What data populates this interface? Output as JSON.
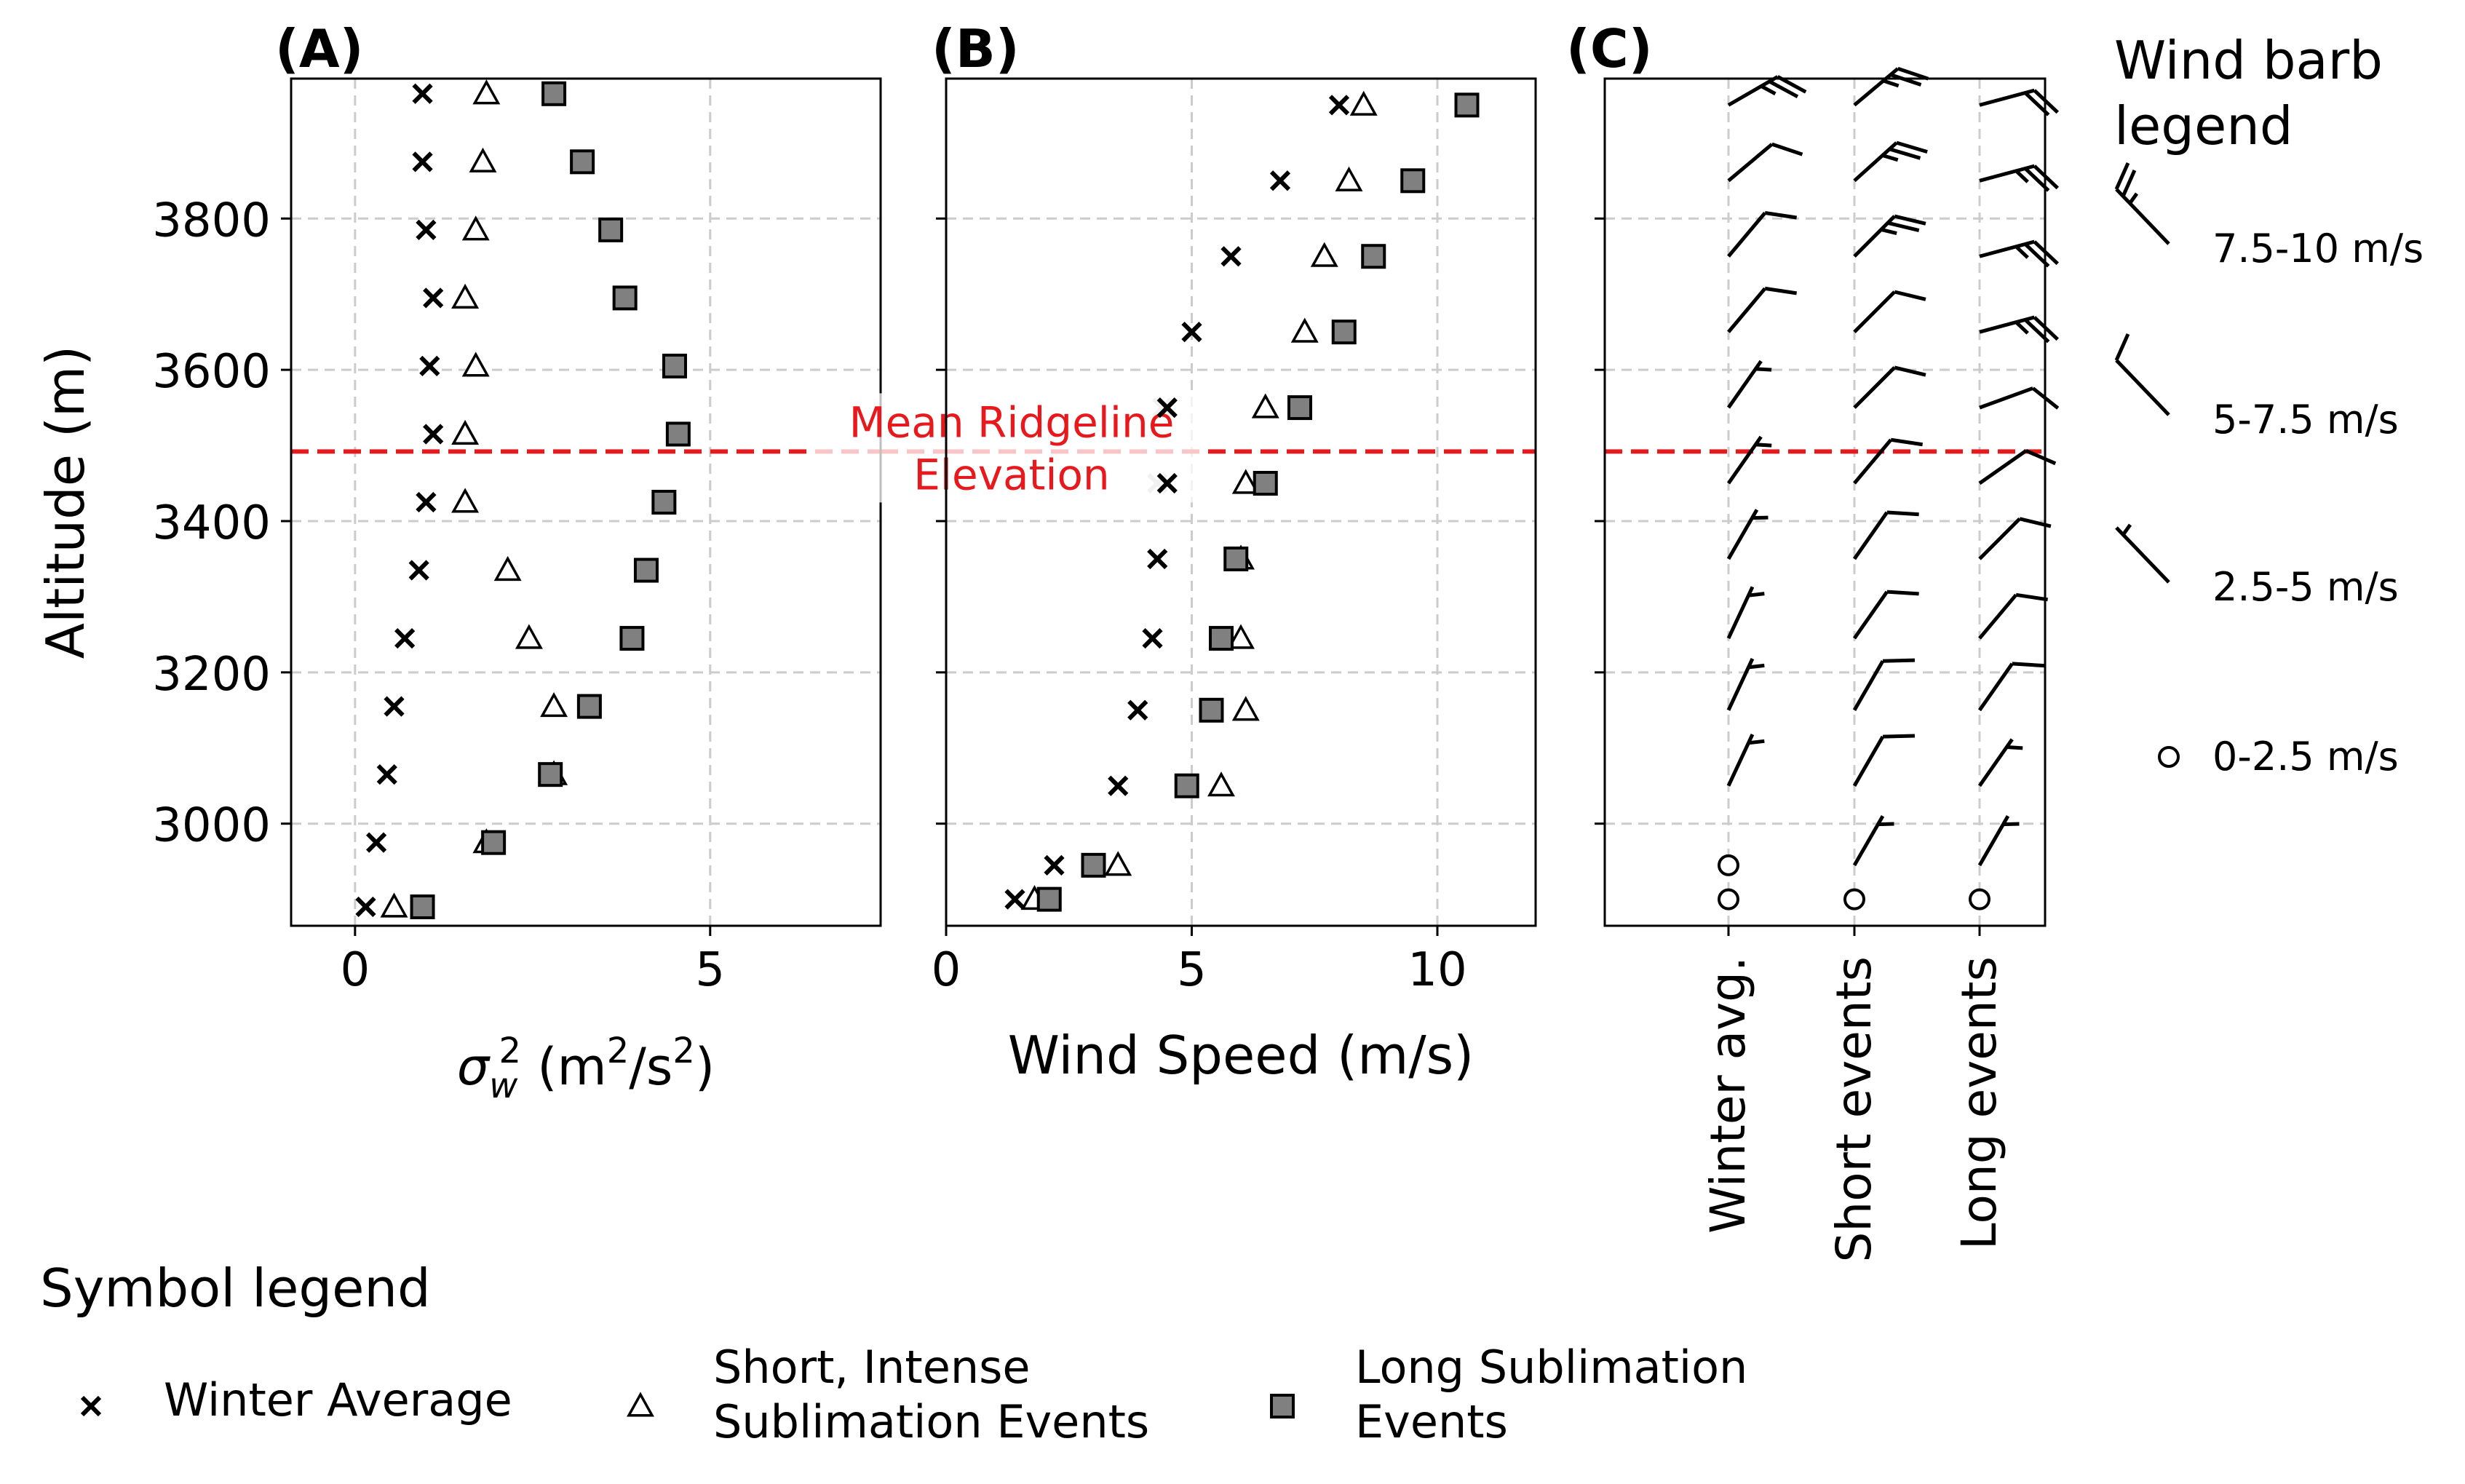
{
  "colors": {
    "winter": "#000000",
    "short_stroke": "#000000",
    "long_fill": "#808080",
    "ridge": "#e8191c",
    "grid": "#cccccc",
    "faded_winter": "#c8c8c8"
  },
  "chart_data": [
    {
      "panel": "A",
      "type": "scatter",
      "panel_label": "(A)",
      "xlabel_symbol": "σ",
      "xlabel_sub": "w",
      "xlabel_sup": "2",
      "xlabel_units_pre": " (m",
      "xlabel_units_sup": "2",
      "xlabel_units_mid": "/s",
      "xlabel_units_sup2": "2",
      "xlabel_units_post": ")",
      "ylabel": "Altitude (m)",
      "xlim": [
        -0.9,
        7.4
      ],
      "ylim": [
        2865,
        3985
      ],
      "xticks": [
        0,
        5
      ],
      "xticklabels": [
        "0",
        "5"
      ],
      "yticks": [
        3000,
        3200,
        3400,
        3600,
        3800
      ],
      "yticklabels": [
        "3000",
        "3200",
        "3400",
        "3600",
        "3800"
      ],
      "grid": true,
      "series": [
        {
          "name": "Winter Average",
          "marker": "x",
          "points": [
            [
              0.15,
              2890
            ],
            [
              0.3,
              2975
            ],
            [
              0.45,
              3065
            ],
            [
              0.55,
              3155
            ],
            [
              0.7,
              3245
            ],
            [
              0.9,
              3335
            ],
            [
              1.0,
              3425
            ],
            [
              1.1,
              3515
            ],
            [
              1.05,
              3605
            ],
            [
              1.1,
              3695
            ],
            [
              1.0,
              3785
            ],
            [
              0.95,
              3875
            ],
            [
              0.95,
              3965
            ]
          ]
        },
        {
          "name": "Short, Intense Sublimation Events",
          "marker": "triangle",
          "points": [
            [
              0.55,
              2890
            ],
            [
              1.85,
              2975
            ],
            [
              2.8,
              3065
            ],
            [
              2.8,
              3155
            ],
            [
              2.45,
              3245
            ],
            [
              2.15,
              3335
            ],
            [
              1.55,
              3425
            ],
            [
              1.55,
              3515
            ],
            [
              1.7,
              3605
            ],
            [
              1.55,
              3695
            ],
            [
              1.7,
              3785
            ],
            [
              1.8,
              3875
            ],
            [
              1.85,
              3965
            ]
          ]
        },
        {
          "name": "Long Sublimation Events",
          "marker": "square",
          "points": [
            [
              0.95,
              2890
            ],
            [
              1.95,
              2975
            ],
            [
              2.75,
              3065
            ],
            [
              3.3,
              3155
            ],
            [
              3.9,
              3245
            ],
            [
              4.1,
              3335
            ],
            [
              4.35,
              3425
            ],
            [
              4.55,
              3515
            ],
            [
              4.5,
              3605
            ],
            [
              3.8,
              3695
            ],
            [
              3.6,
              3785
            ],
            [
              3.2,
              3875
            ],
            [
              2.8,
              3965
            ]
          ]
        }
      ],
      "annotation": {
        "text_line1": "Mean Ridgeline",
        "text_line2": "Elevation",
        "y": 3492
      }
    },
    {
      "panel": "B",
      "type": "scatter",
      "panel_label": "(B)",
      "xlabel": "Wind Speed (m/s)",
      "xlim": [
        0,
        12
      ],
      "ylim": [
        2865,
        3985
      ],
      "xticks": [
        0,
        5,
        10
      ],
      "xticklabels": [
        "0",
        "5",
        "10"
      ],
      "yticks": [
        3000,
        3200,
        3400,
        3600,
        3800
      ],
      "grid": true,
      "series": [
        {
          "name": "Winter Average",
          "marker": "x",
          "points": [
            [
              1.4,
              2900
            ],
            [
              2.2,
              2945
            ],
            [
              3.5,
              3050
            ],
            [
              3.9,
              3150
            ],
            [
              4.2,
              3245
            ],
            [
              4.3,
              3350
            ],
            [
              4.5,
              3450
            ],
            [
              4.5,
              3550
            ],
            [
              5.0,
              3650
            ],
            [
              5.8,
              3750
            ],
            [
              6.8,
              3850
            ],
            [
              8.0,
              3950
            ]
          ]
        },
        {
          "name": "Short, Intense Sublimation Events",
          "marker": "triangle",
          "points": [
            [
              1.8,
              2900
            ],
            [
              3.5,
              2945
            ],
            [
              5.6,
              3050
            ],
            [
              6.1,
              3150
            ],
            [
              6.0,
              3245
            ],
            [
              6.0,
              3350
            ],
            [
              6.1,
              3450
            ],
            [
              6.5,
              3550
            ],
            [
              7.3,
              3650
            ],
            [
              7.7,
              3750
            ],
            [
              8.2,
              3850
            ],
            [
              8.5,
              3950
            ]
          ]
        },
        {
          "name": "Long Sublimation Events",
          "marker": "square",
          "points": [
            [
              2.1,
              2900
            ],
            [
              3.0,
              2945
            ],
            [
              4.9,
              3050
            ],
            [
              5.4,
              3150
            ],
            [
              5.6,
              3245
            ],
            [
              5.9,
              3350
            ],
            [
              6.5,
              3450
            ],
            [
              7.2,
              3550
            ],
            [
              8.1,
              3650
            ],
            [
              8.7,
              3750
            ],
            [
              9.5,
              3850
            ],
            [
              10.6,
              3950
            ]
          ]
        }
      ],
      "faded_points_in_label": [
        [
          4.4,
          3550
        ],
        [
          4.3,
          3450
        ]
      ]
    },
    {
      "panel": "C",
      "type": "barbs",
      "panel_label": "(C)",
      "xticklabels": [
        "Winter avg.",
        "Short events",
        "Long events"
      ],
      "ylim": [
        2865,
        3985
      ],
      "yticks": [
        3000,
        3200,
        3400,
        3600,
        3800
      ],
      "columns": [
        {
          "name": "Winter avg.",
          "barbs": [
            {
              "y": 2900,
              "speed": 1.4,
              "dir": 200
            },
            {
              "y": 2945,
              "speed": 2.2,
              "dir": 200
            },
            {
              "y": 3050,
              "speed": 3.5,
              "dir": 205
            },
            {
              "y": 3150,
              "speed": 3.9,
              "dir": 205
            },
            {
              "y": 3245,
              "speed": 4.2,
              "dir": 205
            },
            {
              "y": 3350,
              "speed": 4.3,
              "dir": 210
            },
            {
              "y": 3450,
              "speed": 4.5,
              "dir": 215
            },
            {
              "y": 3550,
              "speed": 4.5,
              "dir": 215
            },
            {
              "y": 3650,
              "speed": 5.0,
              "dir": 220
            },
            {
              "y": 3750,
              "speed": 5.8,
              "dir": 220
            },
            {
              "y": 3850,
              "speed": 6.8,
              "dir": 230
            },
            {
              "y": 3950,
              "speed": 8.0,
              "dir": 240
            }
          ]
        },
        {
          "name": "Short events",
          "barbs": [
            {
              "y": 2900,
              "speed": 1.8,
              "dir": 210
            },
            {
              "y": 2945,
              "speed": 3.5,
              "dir": 210
            },
            {
              "y": 3050,
              "speed": 5.6,
              "dir": 210
            },
            {
              "y": 3150,
              "speed": 6.1,
              "dir": 210
            },
            {
              "y": 3245,
              "speed": 6.0,
              "dir": 215
            },
            {
              "y": 3350,
              "speed": 6.0,
              "dir": 215
            },
            {
              "y": 3450,
              "speed": 6.1,
              "dir": 220
            },
            {
              "y": 3550,
              "speed": 6.5,
              "dir": 225
            },
            {
              "y": 3650,
              "speed": 7.3,
              "dir": 225
            },
            {
              "y": 3750,
              "speed": 7.7,
              "dir": 225
            },
            {
              "y": 3850,
              "speed": 8.2,
              "dir": 228
            },
            {
              "y": 3950,
              "speed": 8.5,
              "dir": 230
            }
          ]
        },
        {
          "name": "Long events",
          "barbs": [
            {
              "y": 2900,
              "speed": 2.1,
              "dir": 210
            },
            {
              "y": 2945,
              "speed": 3.0,
              "dir": 210
            },
            {
              "y": 3050,
              "speed": 4.9,
              "dir": 215
            },
            {
              "y": 3150,
              "speed": 5.4,
              "dir": 215
            },
            {
              "y": 3245,
              "speed": 5.6,
              "dir": 220
            },
            {
              "y": 3350,
              "speed": 5.9,
              "dir": 225
            },
            {
              "y": 3450,
              "speed": 6.5,
              "dir": 235
            },
            {
              "y": 3550,
              "speed": 7.2,
              "dir": 250
            },
            {
              "y": 3650,
              "speed": 8.1,
              "dir": 255
            },
            {
              "y": 3750,
              "speed": 8.7,
              "dir": 255
            },
            {
              "y": 3850,
              "speed": 9.5,
              "dir": 255
            },
            {
              "y": 3950,
              "speed": 10.6,
              "dir": 255
            }
          ]
        }
      ]
    }
  ],
  "barb_legend": {
    "title_line1": "Wind barb",
    "title_line2": "legend",
    "entries": [
      {
        "label": "7.5-10 m/s",
        "speed": 9.0
      },
      {
        "label": "5-7.5 m/s",
        "speed": 6.0
      },
      {
        "label": "2.5-5 m/s",
        "speed": 3.5
      },
      {
        "label": "0-2.5 m/s",
        "speed": 1.0
      }
    ]
  },
  "symbol_legend": {
    "title": "Symbol legend",
    "entries": [
      {
        "marker": "x",
        "line1": "Winter Average",
        "line2": ""
      },
      {
        "marker": "triangle",
        "line1": "Short, Intense",
        "line2": "Sublimation Events"
      },
      {
        "marker": "square",
        "line1": "Long Sublimation",
        "line2": "Events"
      }
    ]
  }
}
